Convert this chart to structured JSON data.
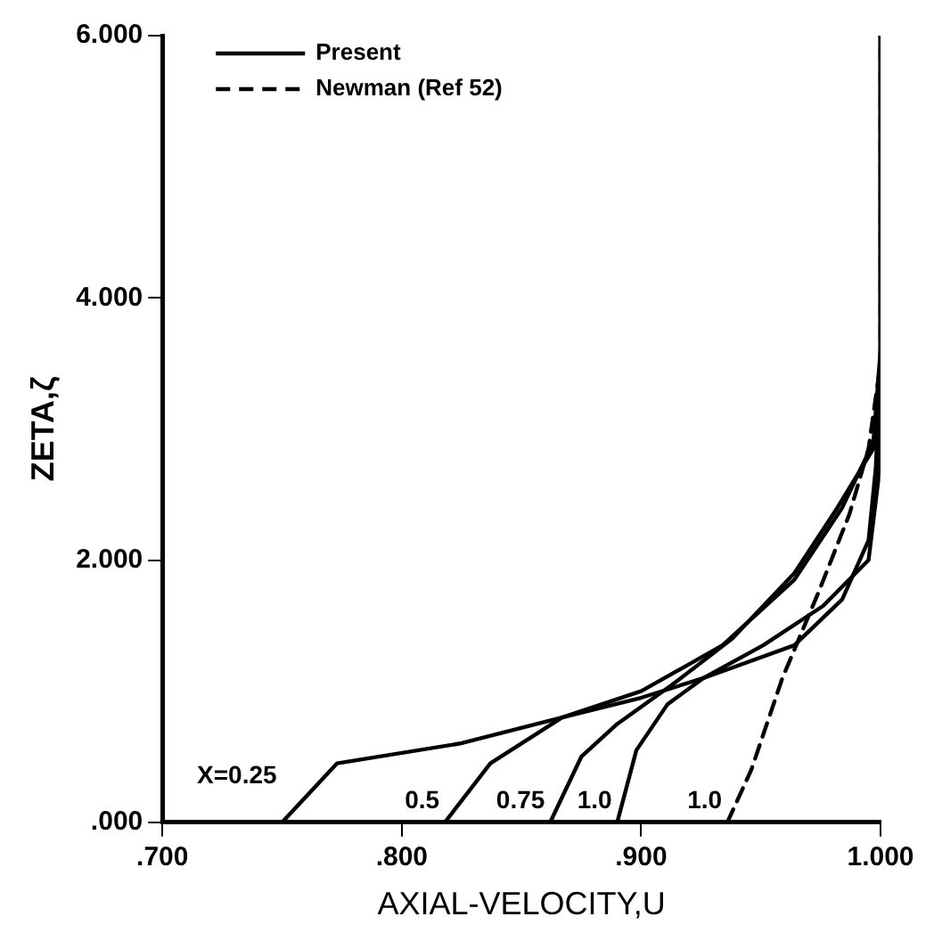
{
  "chart_data": {
    "type": "line",
    "xlabel": "AXIAL-VELOCITY,U",
    "ylabel": "ZETA,ζ",
    "xlim": [
      0.7,
      1.0
    ],
    "ylim": [
      0,
      6
    ],
    "xticks": [
      {
        "value": 0.7,
        "label": ".700"
      },
      {
        "value": 0.8,
        "label": ".800"
      },
      {
        "value": 0.9,
        "label": ".900"
      },
      {
        "value": 1.0,
        "label": "1.000"
      }
    ],
    "yticks": [
      {
        "value": 0,
        "label": ".000"
      },
      {
        "value": 2,
        "label": "2.000"
      },
      {
        "value": 4,
        "label": "4.000"
      },
      {
        "value": 6,
        "label": "6.000"
      }
    ],
    "grid": false,
    "legend": "top left",
    "marker": "none",
    "line_style": "solid",
    "series": [
      {
        "name": "Present",
        "color": "#000000",
        "x": [
          0.75,
          0.773,
          0.824,
          0.867,
          0.9,
          0.926,
          0.964,
          0.984,
          0.995,
          0.998,
          1.0,
          1.0
        ],
        "values": [
          0,
          0.45,
          0.6,
          0.8,
          0.95,
          1.1,
          1.35,
          1.7,
          2.15,
          2.7,
          3.5,
          6
        ]
      },
      {
        "color": "#000000",
        "x": [
          0.818,
          0.837,
          0.867,
          0.9,
          0.934,
          0.964,
          0.984,
          0.997,
          1.0,
          1.0
        ],
        "values": [
          0,
          0.45,
          0.8,
          1.0,
          1.35,
          1.85,
          2.4,
          2.9,
          3.6,
          6
        ]
      },
      {
        "color": "#000000",
        "x": [
          0.862,
          0.875,
          0.89,
          0.913,
          0.938,
          0.964,
          0.982,
          0.997,
          1.0,
          1.0
        ],
        "values": [
          0,
          0.5,
          0.75,
          1.05,
          1.4,
          1.9,
          2.4,
          2.85,
          3.4,
          6
        ]
      },
      {
        "color": "#000000",
        "x": [
          0.89,
          0.898,
          0.911,
          0.926,
          0.951,
          0.976,
          0.995,
          0.999,
          1.0,
          1.0
        ],
        "values": [
          0,
          0.55,
          0.9,
          1.1,
          1.35,
          1.65,
          2.0,
          2.6,
          3.0,
          6
        ]
      },
      {
        "name": "Newman (Ref 52)",
        "color": "#000000",
        "line_style": "dashed",
        "x": [
          0.936,
          0.946,
          0.959,
          0.974,
          0.987,
          0.995,
          1.0,
          1.0
        ],
        "values": [
          0,
          0.4,
          1.1,
          1.75,
          2.35,
          2.85,
          3.5,
          6
        ]
      }
    ],
    "annotations": [
      "X=0.25",
      "0.5",
      "0.75",
      "1.0",
      "1.0"
    ]
  }
}
